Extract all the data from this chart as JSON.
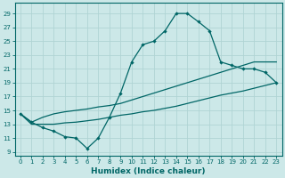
{
  "xlabel": "Humidex (Indice chaleur)",
  "bg_color": "#cce8e8",
  "grid_color": "#b0d4d4",
  "line_color": "#006666",
  "xlim": [
    -0.5,
    23.5
  ],
  "ylim": [
    8.5,
    30.5
  ],
  "xticks": [
    0,
    1,
    2,
    3,
    4,
    5,
    6,
    7,
    8,
    9,
    10,
    11,
    12,
    13,
    14,
    15,
    16,
    17,
    18,
    19,
    20,
    21,
    22,
    23
  ],
  "yticks": [
    9,
    11,
    13,
    15,
    17,
    19,
    21,
    23,
    25,
    27,
    29
  ],
  "line1_x": [
    0,
    1,
    2,
    3,
    4,
    5,
    6,
    7,
    8,
    9,
    10,
    11,
    12,
    13,
    14,
    15,
    16,
    17,
    18,
    19,
    20,
    21,
    22,
    23
  ],
  "line1_y": [
    14.5,
    13.3,
    12.5,
    12.0,
    11.2,
    11.0,
    9.5,
    11.0,
    14.0,
    17.5,
    22.0,
    24.5,
    25.0,
    26.5,
    29.0,
    29.0,
    27.8,
    26.5,
    22.0,
    21.5,
    21.0,
    21.0,
    20.5,
    19.0
  ],
  "line2_x": [
    0,
    1,
    2,
    3,
    4,
    5,
    6,
    7,
    8,
    9,
    10,
    11,
    12,
    13,
    14,
    15,
    16,
    17,
    18,
    19,
    20,
    21,
    22,
    23
  ],
  "line2_y": [
    14.5,
    13.0,
    13.0,
    13.0,
    13.2,
    13.3,
    13.5,
    13.7,
    14.0,
    14.3,
    14.5,
    14.8,
    15.0,
    15.3,
    15.6,
    16.0,
    16.4,
    16.8,
    17.2,
    17.5,
    17.8,
    18.2,
    18.6,
    19.0
  ],
  "line3_x": [
    0,
    1,
    2,
    3,
    4,
    5,
    6,
    7,
    8,
    9,
    10,
    11,
    12,
    13,
    14,
    15,
    16,
    17,
    18,
    19,
    20,
    21,
    22,
    23
  ],
  "line3_y": [
    14.5,
    13.3,
    14.0,
    14.5,
    14.8,
    15.0,
    15.2,
    15.5,
    15.7,
    16.0,
    16.5,
    17.0,
    17.5,
    18.0,
    18.5,
    19.0,
    19.5,
    20.0,
    20.5,
    21.0,
    21.5,
    22.0,
    22.0,
    22.0
  ]
}
